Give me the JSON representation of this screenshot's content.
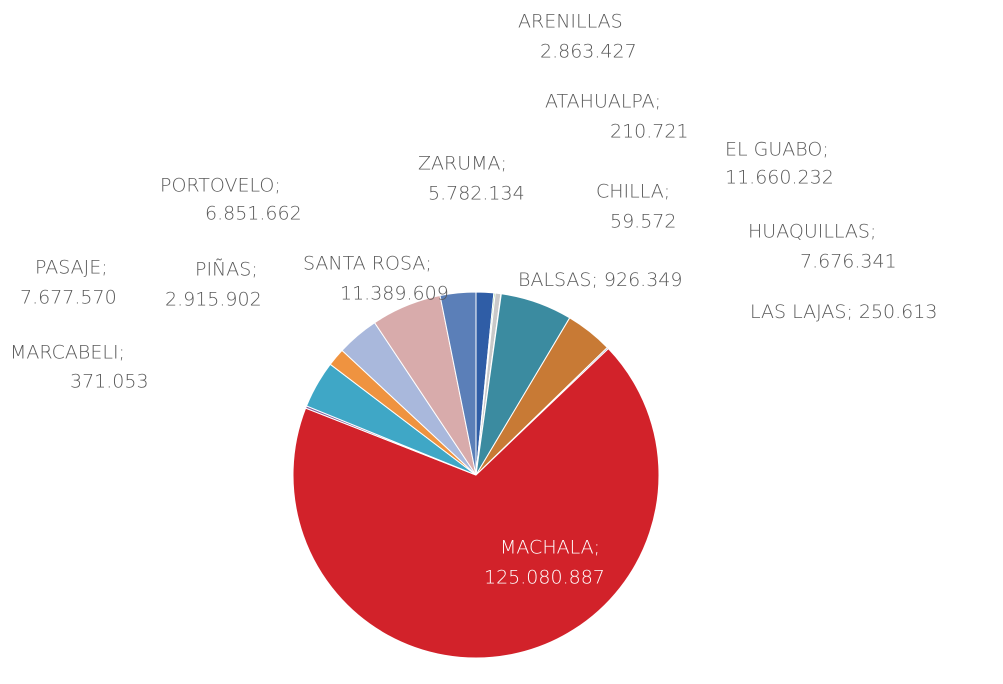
{
  "chart_data": {
    "type": "pie",
    "categories": [
      "ARENILLAS",
      "ATAHUALPA;",
      "BALSAS;",
      "CHILLA;",
      "EL GUABO;",
      "HUAQUILLAS;",
      "LAS LAJAS;",
      "MACHALA;",
      "MARCABELI;",
      "PASAJE;",
      "PIÑAS;",
      "PORTOVELO;",
      "SANTA ROSA;",
      "ZARUMA;"
    ],
    "values": [
      2863427,
      210721,
      926349,
      59572,
      11660232,
      7676341,
      250613,
      125080887,
      371053,
      7677570,
      2915902,
      6851662,
      11389609,
      5782134
    ],
    "value_labels": [
      "2.863.427",
      "210.721",
      "926.349",
      "59.572",
      "11.660.232",
      "7.676.341",
      "250.613",
      "125.080.887",
      "371.053",
      "7.677.570",
      "2.915.902",
      "6.851.662",
      "11.389.609",
      "5.782.134"
    ],
    "colors": [
      "#2f5da6",
      "#4eae3f",
      "#c9c9c9",
      "#8c6bb1",
      "#3b8ba0",
      "#c87a35",
      "#9aa7c9",
      "#d2222a",
      "#7f62a0",
      "#3fa7c6",
      "#ef9340",
      "#a9b8dc",
      "#d8abab",
      "#5b7fb8"
    ]
  }
}
